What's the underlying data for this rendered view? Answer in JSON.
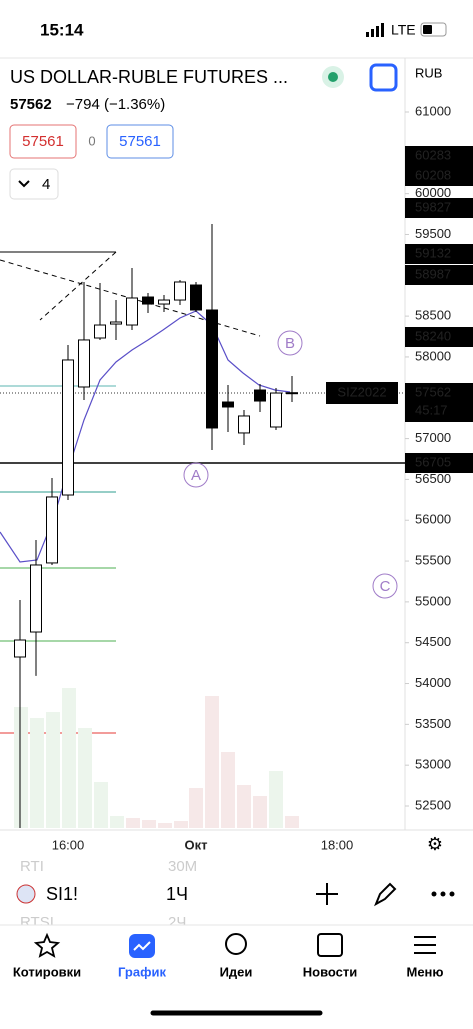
{
  "status": {
    "time": "15:14",
    "network": "LTE"
  },
  "header": {
    "title": "US DOLLAR-RUBLE FUTURES ...",
    "currency": "RUB",
    "price": "57562",
    "change": "−794 (−1.36%)",
    "bid": "57561",
    "spread": "0",
    "ask": "57561",
    "indicators": "4"
  },
  "chart_data": {
    "type": "candlestick",
    "ylim": [
      52230,
      61270
    ],
    "yticks": [
      61000,
      60000,
      59500,
      58500,
      58000,
      57000,
      56500,
      56000,
      55500,
      55000,
      54500,
      54000,
      53500,
      53000,
      52500
    ],
    "candles": [
      {
        "open": 54325,
        "high": 55023,
        "low": 52231,
        "close": 54533
      },
      {
        "open": 54631,
        "high": 55758,
        "low": 54093,
        "close": 55452
      },
      {
        "open": 55477,
        "high": 56517,
        "low": 55452,
        "close": 56285
      },
      {
        "open": 56309,
        "high": 58146,
        "low": 56248,
        "close": 57963
      },
      {
        "open": 57632,
        "high": 58918,
        "low": 57473,
        "close": 58208
      },
      {
        "open": 58232,
        "high": 58906,
        "low": 58208,
        "close": 58391
      },
      {
        "open": 58403,
        "high": 58697,
        "low": 58208,
        "close": 58428
      },
      {
        "open": 58391,
        "high": 59089,
        "low": 58330,
        "close": 58722
      },
      {
        "open": 58734,
        "high": 58783,
        "low": 58538,
        "close": 58648
      },
      {
        "open": 58648,
        "high": 58759,
        "low": 58551,
        "close": 58697
      },
      {
        "open": 58697,
        "high": 58943,
        "low": 58636,
        "close": 58918
      },
      {
        "open": 58881,
        "high": 58918,
        "low": 58551,
        "close": 58575
      },
      {
        "open": 58575,
        "high": 59628,
        "low": 56860,
        "close": 57130
      },
      {
        "open": 57448,
        "high": 57656,
        "low": 57081,
        "close": 57387
      },
      {
        "open": 57069,
        "high": 57350,
        "low": 56922,
        "close": 57277
      },
      {
        "open": 57595,
        "high": 57669,
        "low": 57326,
        "close": 57460
      },
      {
        "open": 57142,
        "high": 57620,
        "low": 57105,
        "close": 57558
      },
      {
        "open": 57558,
        "high": 57767,
        "low": 57448,
        "close": 57562
      }
    ],
    "price_tags": [
      "60283",
      "60208",
      "59827",
      "59132",
      "58987",
      "58240",
      "57562",
      "56705"
    ],
    "symbol_tag": "SIZ2022",
    "countdown": "45:17",
    "annotations": [
      "A",
      "B",
      "C"
    ],
    "xlabels": [
      "16:00",
      "Окт",
      "18:00"
    ]
  },
  "toolbar": {
    "symbol": "SI1!",
    "interval": "1Ч",
    "ghost": [
      "RTI",
      "30M",
      "RTSI",
      "2Ч"
    ]
  },
  "nav": [
    "Котировки",
    "График",
    "Идеи",
    "Новости",
    "Меню"
  ]
}
